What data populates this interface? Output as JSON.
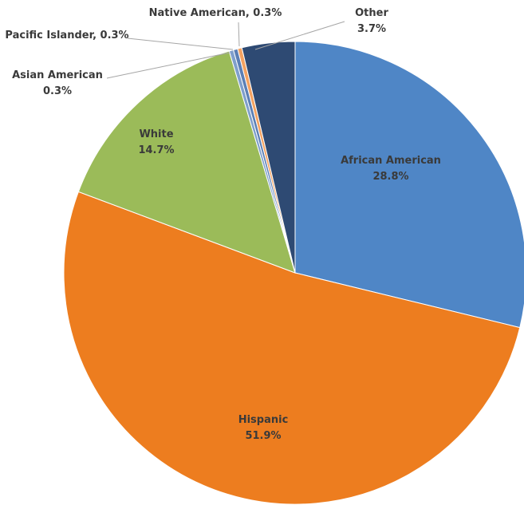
{
  "chart_data": {
    "type": "pie",
    "title": "",
    "slices": [
      {
        "name": "African American",
        "value": 28.8,
        "label": "28.8%",
        "color": "#4f86c6"
      },
      {
        "name": "Hispanic",
        "value": 51.9,
        "label": "51.9%",
        "color": "#ed7d1f"
      },
      {
        "name": "White",
        "value": 14.7,
        "label": "14.7%",
        "color": "#9bbb59"
      },
      {
        "name": "Asian American",
        "value": 0.3,
        "label": "0.3%",
        "color": "#7f9fcc"
      },
      {
        "name": "Pacific Islander",
        "value": 0.3,
        "label": "0.3%",
        "color": "#5b7fb5"
      },
      {
        "name": "Native American",
        "value": 0.3,
        "label": "0.3%",
        "color": "#f4a261"
      },
      {
        "name": "Other",
        "value": 3.7,
        "label": "3.7%",
        "color": "#2e4a73"
      }
    ],
    "legend": "none"
  }
}
